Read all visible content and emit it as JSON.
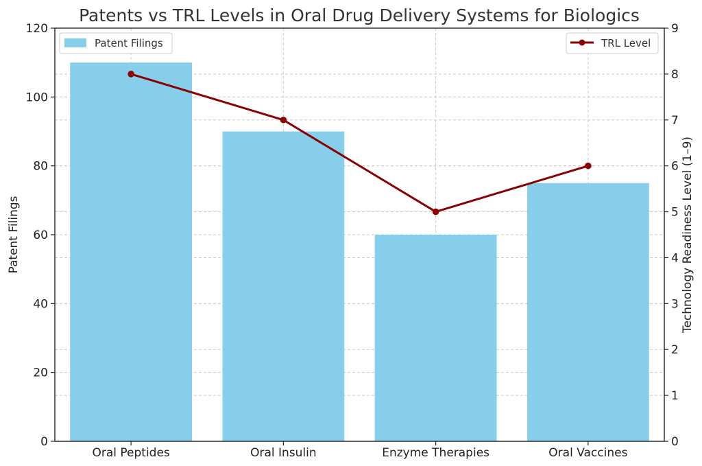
{
  "chart_data": {
    "type": "bar",
    "title": "Patents vs TRL Levels in Oral Drug Delivery Systems for Biologics",
    "categories": [
      "Oral Peptides",
      "Oral Insulin",
      "Enzyme Therapies",
      "Oral Vaccines"
    ],
    "series": [
      {
        "name": "Patent Filings",
        "type": "bar",
        "axis": "left",
        "values": [
          110,
          90,
          60,
          75
        ],
        "color": "#87CEEB"
      },
      {
        "name": "TRL Level",
        "type": "line",
        "axis": "right",
        "values": [
          8,
          7,
          5,
          6
        ],
        "color": "#8B0000"
      }
    ],
    "ylabel": "Patent Filings",
    "y2label": "Technology Readiness Level (1–9)",
    "ylim": [
      0,
      120
    ],
    "y2lim": [
      0,
      9
    ],
    "yticks": [
      0,
      20,
      40,
      60,
      80,
      100,
      120
    ],
    "y2ticks": [
      0,
      1,
      2,
      3,
      4,
      5,
      6,
      7,
      8,
      9
    ],
    "grid": true,
    "legend": [
      {
        "label": "Patent Filings",
        "placement": "top-left"
      },
      {
        "label": "TRL Level",
        "placement": "top-right"
      }
    ]
  }
}
